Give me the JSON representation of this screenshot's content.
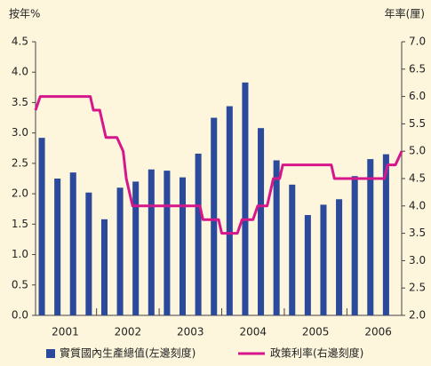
{
  "chart_data": {
    "type": "bar",
    "y_label": "按年%",
    "y2_label": "年率(厘)",
    "categories": [
      "2001",
      null,
      null,
      null,
      "2002",
      null,
      null,
      null,
      "2003",
      null,
      null,
      null,
      "2004",
      null,
      null,
      null,
      "2005",
      null,
      null,
      null,
      "2006",
      null,
      null
    ],
    "xlim": [
      -0.4,
      23
    ],
    "ylim": [
      0,
      4.5
    ],
    "yticks": [
      {
        "value": 0,
        "label": "0.0"
      },
      0.5,
      {
        "value": 1,
        "label": "1.0"
      },
      1.5,
      {
        "value": 2,
        "label": "2.0"
      },
      2.5,
      {
        "value": 3,
        "label": "3.0"
      },
      3.5,
      {
        "value": 4,
        "label": "4.0"
      },
      4.5
    ],
    "y2lim": [
      2,
      7
    ],
    "y2ticks": [
      {
        "value": 2,
        "label": "2.0"
      },
      2.5,
      {
        "value": 3,
        "label": "3.0"
      },
      3.5,
      {
        "value": 4,
        "label": "4.0"
      },
      4.5,
      {
        "value": 5,
        "label": "5.0"
      },
      5.5,
      {
        "value": 6,
        "label": "6.0"
      },
      6.5,
      {
        "value": 7,
        "label": "7.0"
      }
    ],
    "series": [
      {
        "name": "實質國內生產總值(左邊刻度)",
        "type": "bar",
        "color": "#2b4a9b",
        "values": [
          2.92,
          2.25,
          2.35,
          2.02,
          1.58,
          2.1,
          2.2,
          2.4,
          2.38,
          2.27,
          2.66,
          3.25,
          3.44,
          3.83,
          3.08,
          2.55,
          2.15,
          1.65,
          1.82,
          1.91,
          2.29,
          2.57,
          2.65
        ]
      },
      {
        "name": "政策利率(右邊刻度)",
        "type": "line",
        "axis": "y2",
        "color": "#d6178c",
        "x": [
          -0.4,
          -0.1,
          3.1,
          3.3,
          3.7,
          4.1,
          4.8,
          5.2,
          5.4,
          5.8,
          10.1,
          10.3,
          11.3,
          11.5,
          12.5,
          12.8,
          13.5,
          13.8,
          14.4,
          14.8,
          15.2,
          15.4,
          18.5,
          18.7,
          21.9,
          22.1,
          22.6,
          23
        ],
        "values": [
          5.75,
          6.0,
          6.0,
          5.75,
          5.75,
          5.25,
          5.25,
          5.0,
          4.5,
          4.0,
          4.0,
          3.75,
          3.75,
          3.5,
          3.5,
          3.75,
          3.75,
          4.0,
          4.0,
          4.5,
          4.5,
          4.75,
          4.75,
          4.5,
          4.5,
          4.75,
          4.75,
          5.0
        ]
      }
    ]
  }
}
